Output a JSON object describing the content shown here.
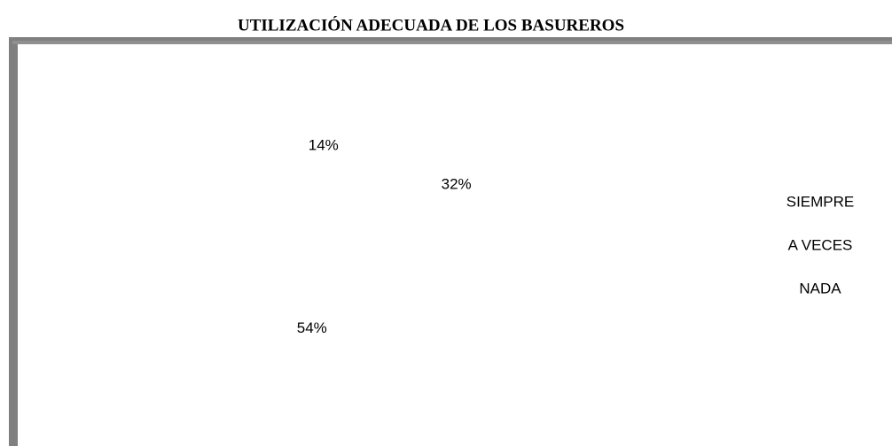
{
  "chart_data": {
    "type": "pie",
    "title": "UTILIZACIÓN ADECUADA DE LOS BASUREROS",
    "categories": [
      "SIEMPRE",
      "A VECES",
      "NADA"
    ],
    "values": [
      32,
      54,
      14
    ],
    "value_labels": [
      "32%",
      "54%",
      "14%"
    ]
  }
}
